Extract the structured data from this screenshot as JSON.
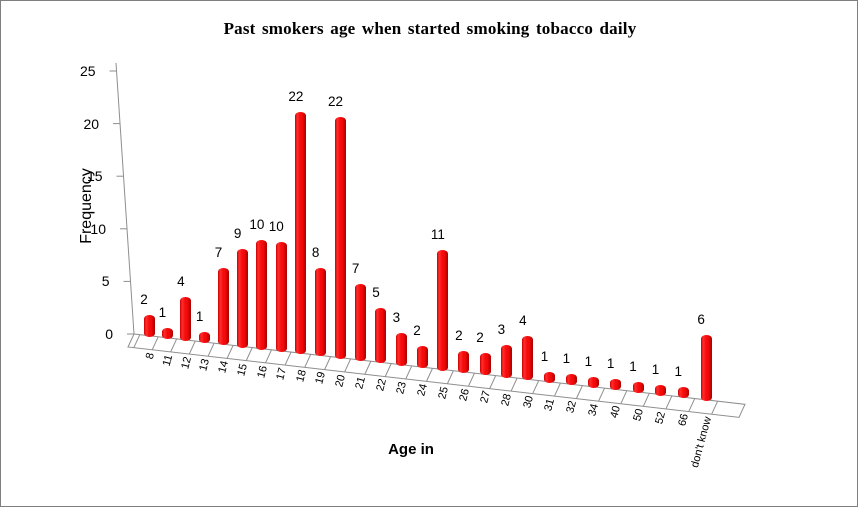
{
  "chart_data": {
    "type": "bar",
    "style": "excel-3d-column",
    "title": "Past smokers age when started smoking tobacco daily",
    "xlabel": "Age in",
    "ylabel": "Frequency",
    "categories": [
      "8",
      "11",
      "12",
      "13",
      "14",
      "15",
      "16",
      "17",
      "18",
      "19",
      "20",
      "21",
      "22",
      "23",
      "24",
      "25",
      "26",
      "27",
      "28",
      "30",
      "31",
      "32",
      "34",
      "40",
      "50",
      "52",
      "66",
      "don't know"
    ],
    "values": [
      2,
      1,
      4,
      1,
      7,
      9,
      10,
      10,
      22,
      8,
      22,
      7,
      5,
      3,
      2,
      11,
      2,
      2,
      3,
      4,
      1,
      1,
      1,
      1,
      1,
      1,
      1,
      6
    ],
    "data_labels": true,
    "ylim": [
      0,
      25
    ],
    "yticks": [
      0,
      5,
      10,
      15,
      20,
      25
    ],
    "grid": false,
    "legend": null,
    "colors": {
      "bar_main": "#f50a0a",
      "bar_light": "#ff2d2d",
      "bar_dark": "#a80000",
      "bar_edge": "#c90000",
      "axis_line": "#8e8e8e",
      "text": "#000000",
      "background": "#ffffff"
    }
  }
}
